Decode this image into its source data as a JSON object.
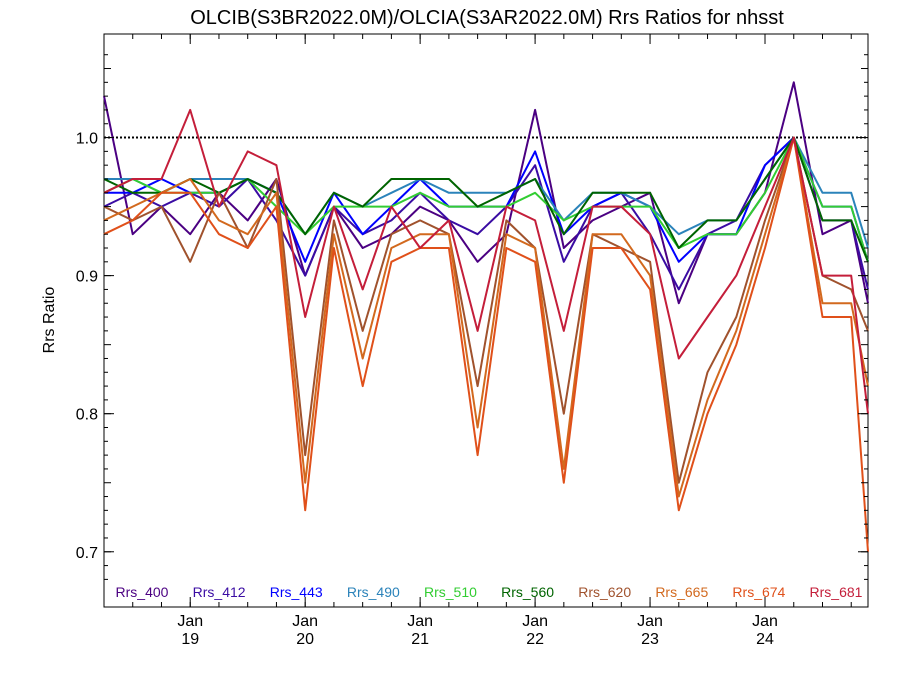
{
  "chart_data": {
    "type": "line",
    "title": "OLCIB(S3BR2022.0M)/OLCIA(S3AR2022.0M)  Rrs Ratios for nhsst",
    "xlabel": "",
    "ylabel": "Rrs Ratio",
    "xlim": [
      "2022-01-18 06:00",
      "2022-01-24 21:30"
    ],
    "ylim": [
      0.66,
      1.075
    ],
    "y_ticks": [
      "0.7",
      "0.8",
      "0.9",
      "1.0"
    ],
    "x_ticks": [
      {
        "month": "Jan",
        "day": "19",
        "date": "2022-01-19"
      },
      {
        "month": "Jan",
        "day": "20",
        "date": "2022-01-20"
      },
      {
        "month": "Jan",
        "day": "21",
        "date": "2022-01-21"
      },
      {
        "month": "Jan",
        "day": "22",
        "date": "2022-01-22"
      },
      {
        "month": "Jan",
        "day": "23",
        "date": "2022-01-23"
      },
      {
        "month": "Jan",
        "day": "24",
        "date": "2022-01-24"
      }
    ],
    "reference_line": 1.0,
    "grid": false,
    "legend_position": "bottom",
    "x": [
      "2022-01-18 06:00",
      "2022-01-18 12:00",
      "2022-01-18 18:00",
      "2022-01-19 00:00",
      "2022-01-19 06:00",
      "2022-01-19 12:00",
      "2022-01-19 18:00",
      "2022-01-20 00:00",
      "2022-01-20 06:00",
      "2022-01-20 12:00",
      "2022-01-20 18:00",
      "2022-01-21 00:00",
      "2022-01-21 06:00",
      "2022-01-21 12:00",
      "2022-01-21 18:00",
      "2022-01-22 00:00",
      "2022-01-22 06:00",
      "2022-01-22 12:00",
      "2022-01-22 18:00",
      "2022-01-23 00:00",
      "2022-01-23 06:00",
      "2022-01-23 12:00",
      "2022-01-23 18:00",
      "2022-01-24 00:00",
      "2022-01-24 06:00",
      "2022-01-24 12:00",
      "2022-01-24 18:00",
      "2022-01-24 21:30"
    ],
    "series": [
      {
        "name": "Rrs_400",
        "color": "#4b0082",
        "values": [
          1.03,
          0.93,
          0.95,
          0.93,
          0.96,
          0.94,
          0.97,
          0.9,
          0.95,
          0.92,
          0.93,
          0.95,
          0.94,
          0.91,
          0.93,
          1.02,
          0.92,
          0.94,
          0.95,
          0.96,
          0.88,
          0.93,
          0.93,
          0.96,
          1.04,
          0.93,
          0.94,
          0.88
        ]
      },
      {
        "name": "Rrs_412",
        "color": "#3a0ca3",
        "values": [
          0.95,
          0.96,
          0.95,
          0.96,
          0.95,
          0.97,
          0.94,
          0.9,
          0.95,
          0.93,
          0.94,
          0.96,
          0.94,
          0.93,
          0.95,
          0.98,
          0.91,
          0.95,
          0.96,
          0.93,
          0.89,
          0.93,
          0.94,
          0.98,
          1.0,
          0.94,
          0.94,
          0.89
        ]
      },
      {
        "name": "Rrs_443",
        "color": "#0000ff",
        "values": [
          0.96,
          0.96,
          0.97,
          0.96,
          0.96,
          0.97,
          0.96,
          0.91,
          0.96,
          0.93,
          0.95,
          0.97,
          0.95,
          0.95,
          0.95,
          0.99,
          0.93,
          0.95,
          0.96,
          0.95,
          0.91,
          0.93,
          0.93,
          0.98,
          1.0,
          0.95,
          0.95,
          0.91
        ]
      },
      {
        "name": "Rrs_490",
        "color": "#2b83ba",
        "values": [
          0.97,
          0.97,
          0.96,
          0.97,
          0.97,
          0.97,
          0.96,
          0.93,
          0.96,
          0.95,
          0.96,
          0.97,
          0.96,
          0.96,
          0.96,
          0.97,
          0.94,
          0.96,
          0.96,
          0.95,
          0.93,
          0.94,
          0.94,
          0.97,
          1.0,
          0.96,
          0.96,
          0.92
        ]
      },
      {
        "name": "Rrs_510",
        "color": "#32cd32",
        "values": [
          0.96,
          0.97,
          0.96,
          0.96,
          0.96,
          0.97,
          0.95,
          0.93,
          0.95,
          0.95,
          0.95,
          0.96,
          0.95,
          0.95,
          0.95,
          0.96,
          0.94,
          0.95,
          0.95,
          0.95,
          0.92,
          0.93,
          0.93,
          0.96,
          1.0,
          0.95,
          0.95,
          0.91
        ]
      },
      {
        "name": "Rrs_560",
        "color": "#006400",
        "values": [
          0.97,
          0.96,
          0.96,
          0.97,
          0.96,
          0.97,
          0.96,
          0.93,
          0.96,
          0.95,
          0.97,
          0.97,
          0.97,
          0.95,
          0.96,
          0.97,
          0.93,
          0.96,
          0.96,
          0.96,
          0.92,
          0.94,
          0.94,
          0.97,
          1.0,
          0.94,
          0.94,
          0.91
        ]
      },
      {
        "name": "Rrs_620",
        "color": "#a0522d",
        "values": [
          0.95,
          0.94,
          0.95,
          0.91,
          0.96,
          0.92,
          0.97,
          0.77,
          0.94,
          0.86,
          0.93,
          0.94,
          0.93,
          0.82,
          0.94,
          0.92,
          0.8,
          0.93,
          0.92,
          0.91,
          0.75,
          0.83,
          0.87,
          0.94,
          1.0,
          0.9,
          0.89,
          0.86
        ]
      },
      {
        "name": "Rrs_665",
        "color": "#d2691e",
        "values": [
          0.94,
          0.95,
          0.96,
          0.97,
          0.94,
          0.93,
          0.96,
          0.75,
          0.93,
          0.84,
          0.92,
          0.93,
          0.93,
          0.79,
          0.93,
          0.92,
          0.76,
          0.93,
          0.93,
          0.9,
          0.74,
          0.81,
          0.86,
          0.93,
          1.0,
          0.88,
          0.88,
          0.82
        ]
      },
      {
        "name": "Rrs_674",
        "color": "#e0501a",
        "values": [
          0.93,
          0.94,
          0.96,
          0.96,
          0.93,
          0.92,
          0.95,
          0.73,
          0.92,
          0.82,
          0.91,
          0.92,
          0.92,
          0.77,
          0.92,
          0.91,
          0.75,
          0.92,
          0.92,
          0.89,
          0.73,
          0.8,
          0.85,
          0.92,
          1.0,
          0.87,
          0.87,
          0.7
        ]
      },
      {
        "name": "Rrs_681",
        "color": "#c41e3a",
        "values": [
          0.96,
          0.97,
          0.97,
          1.02,
          0.95,
          0.99,
          0.98,
          0.87,
          0.95,
          0.89,
          0.95,
          0.92,
          0.94,
          0.86,
          0.95,
          0.94,
          0.86,
          0.95,
          0.95,
          0.93,
          0.84,
          0.87,
          0.9,
          0.95,
          1.0,
          0.9,
          0.9,
          0.8
        ]
      }
    ]
  }
}
